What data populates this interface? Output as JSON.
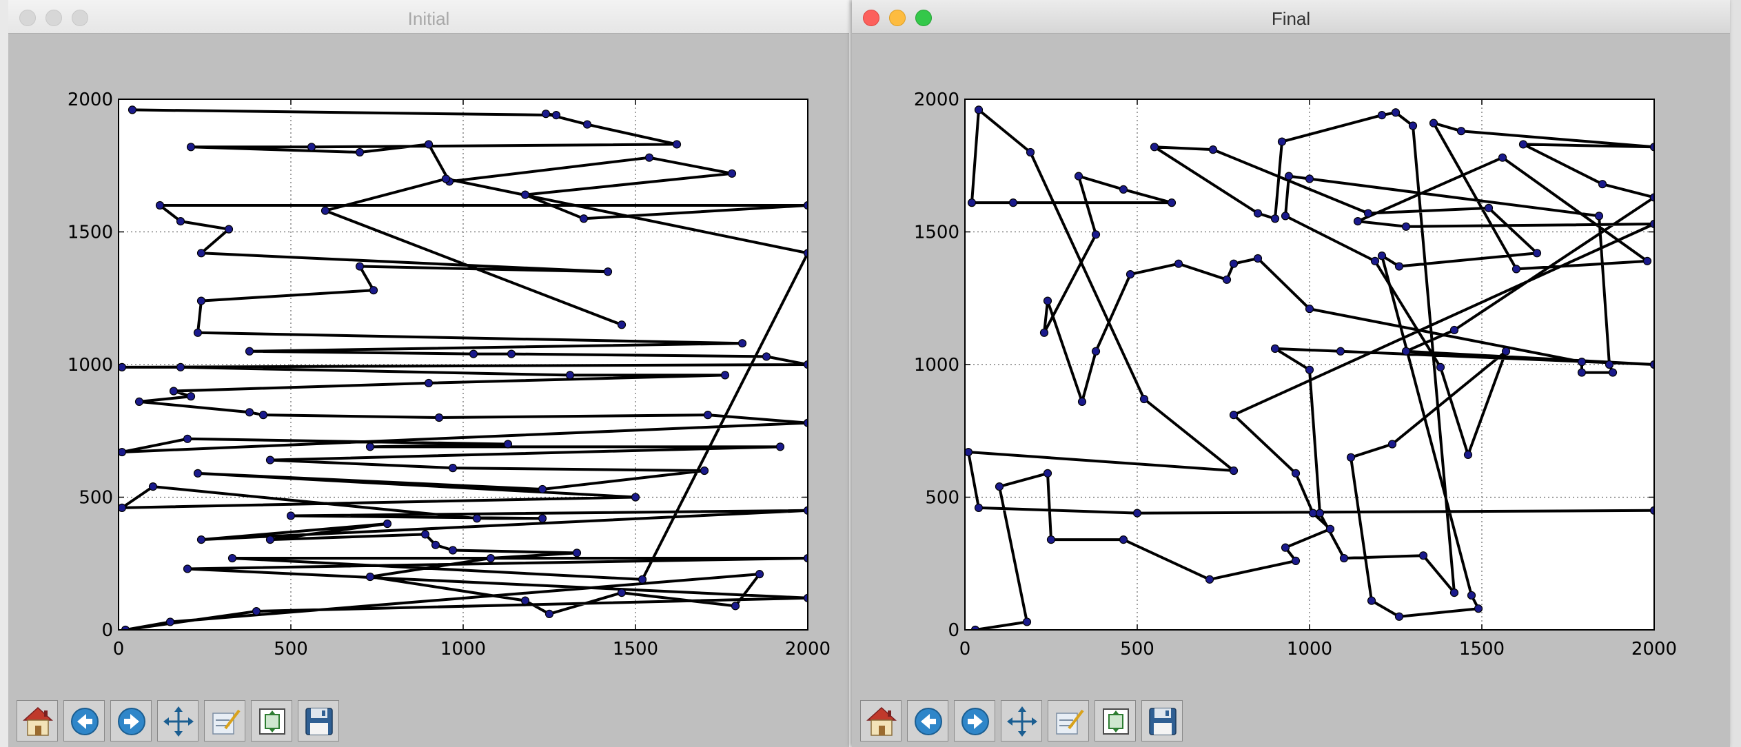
{
  "windows": {
    "initial": {
      "title": "Initial"
    },
    "final": {
      "title": "Final"
    }
  },
  "toolbar": {
    "buttons": [
      "home-icon",
      "back-icon",
      "forward-icon",
      "pan-icon",
      "configure-subplots-icon",
      "zoom-rect-icon",
      "save-icon"
    ]
  },
  "chart_data": [
    {
      "type": "line",
      "title": "",
      "xlabel": "",
      "ylabel": "",
      "xlim": [
        0,
        2000
      ],
      "ylim": [
        0,
        2000
      ],
      "xticks": [
        "0",
        "500",
        "1000",
        "1500",
        "2000"
      ],
      "yticks": [
        "0",
        "500",
        "1000",
        "1500",
        "2000"
      ],
      "grid": true,
      "points": [
        [
          40,
          1960
        ],
        [
          1270,
          1940
        ],
        [
          1240,
          1945
        ],
        [
          1360,
          1905
        ],
        [
          1620,
          1830
        ],
        [
          560,
          1820
        ],
        [
          210,
          1820
        ],
        [
          700,
          1800
        ],
        [
          900,
          1830
        ],
        [
          960,
          1690
        ],
        [
          1540,
          1780
        ],
        [
          1780,
          1720
        ],
        [
          1180,
          1640
        ],
        [
          1350,
          1550
        ],
        [
          2000,
          1600
        ],
        [
          120,
          1600
        ],
        [
          180,
          1540
        ],
        [
          320,
          1510
        ],
        [
          240,
          1420
        ],
        [
          1420,
          1350
        ],
        [
          700,
          1370
        ],
        [
          740,
          1280
        ],
        [
          240,
          1240
        ],
        [
          230,
          1120
        ],
        [
          1810,
          1080
        ],
        [
          380,
          1050
        ],
        [
          1030,
          1040
        ],
        [
          1140,
          1040
        ],
        [
          1880,
          1030
        ],
        [
          2000,
          1000
        ],
        [
          10,
          990
        ],
        [
          180,
          990
        ],
        [
          1310,
          960
        ],
        [
          1760,
          960
        ],
        [
          900,
          930
        ],
        [
          160,
          900
        ],
        [
          210,
          880
        ],
        [
          60,
          860
        ],
        [
          380,
          820
        ],
        [
          420,
          810
        ],
        [
          930,
          800
        ],
        [
          1710,
          810
        ],
        [
          2000,
          780
        ],
        [
          10,
          670
        ],
        [
          200,
          720
        ],
        [
          1130,
          700
        ],
        [
          730,
          690
        ],
        [
          1920,
          690
        ],
        [
          440,
          640
        ],
        [
          970,
          610
        ],
        [
          1700,
          600
        ],
        [
          1230,
          530
        ],
        [
          230,
          590
        ],
        [
          1500,
          500
        ],
        [
          10,
          460
        ],
        [
          100,
          540
        ],
        [
          1040,
          420
        ],
        [
          1230,
          420
        ],
        [
          500,
          430
        ],
        [
          2000,
          450
        ],
        [
          240,
          340
        ],
        [
          780,
          400
        ],
        [
          440,
          340
        ],
        [
          890,
          360
        ],
        [
          920,
          320
        ],
        [
          970,
          300
        ],
        [
          1330,
          290
        ],
        [
          1080,
          270
        ],
        [
          730,
          200
        ],
        [
          1180,
          110
        ],
        [
          1250,
          60
        ],
        [
          1460,
          140
        ],
        [
          1790,
          90
        ],
        [
          1860,
          210
        ],
        [
          150,
          30
        ],
        [
          20,
          0
        ],
        [
          400,
          70
        ],
        [
          2000,
          120
        ],
        [
          200,
          230
        ],
        [
          2000,
          270
        ],
        [
          330,
          270
        ],
        [
          1520,
          190
        ],
        [
          2000,
          1420
        ],
        [
          950,
          1700
        ],
        [
          600,
          1580
        ],
        [
          1460,
          1150
        ]
      ]
    },
    {
      "type": "line",
      "title": "",
      "xlabel": "",
      "ylabel": "",
      "xlim": [
        0,
        2000
      ],
      "ylim": [
        0,
        2000
      ],
      "xticks": [
        "0",
        "500",
        "1000",
        "1500",
        "2000"
      ],
      "yticks": [
        "0",
        "500",
        "1000",
        "1500",
        "2000"
      ],
      "grid": true,
      "points": [
        [
          30,
          0
        ],
        [
          180,
          30
        ],
        [
          100,
          540
        ],
        [
          240,
          590
        ],
        [
          250,
          340
        ],
        [
          460,
          340
        ],
        [
          710,
          190
        ],
        [
          960,
          260
        ],
        [
          930,
          310
        ],
        [
          1060,
          380
        ],
        [
          1010,
          440
        ],
        [
          960,
          590
        ],
        [
          780,
          810
        ],
        [
          2000,
          1530
        ],
        [
          1280,
          1520
        ],
        [
          1140,
          1540
        ],
        [
          1560,
          1780
        ],
        [
          1980,
          1390
        ],
        [
          1600,
          1360
        ],
        [
          1360,
          1910
        ],
        [
          1440,
          1880
        ],
        [
          2000,
          1820
        ],
        [
          1620,
          1830
        ],
        [
          1850,
          1680
        ],
        [
          2000,
          1630
        ],
        [
          1420,
          1130
        ],
        [
          1280,
          1050
        ],
        [
          2000,
          1000
        ],
        [
          1090,
          1050
        ],
        [
          900,
          1060
        ],
        [
          1000,
          980
        ],
        [
          1030,
          440
        ],
        [
          1100,
          270
        ],
        [
          1330,
          280
        ],
        [
          1420,
          140
        ],
        [
          1300,
          1900
        ],
        [
          1250,
          1950
        ],
        [
          1210,
          1940
        ],
        [
          920,
          1840
        ],
        [
          900,
          1550
        ],
        [
          850,
          1570
        ],
        [
          550,
          1820
        ],
        [
          720,
          1810
        ],
        [
          1170,
          1570
        ],
        [
          1520,
          1590
        ],
        [
          1660,
          1420
        ],
        [
          1260,
          1370
        ],
        [
          1210,
          1410
        ],
        [
          1470,
          130
        ],
        [
          1490,
          80
        ],
        [
          1260,
          50
        ],
        [
          1180,
          110
        ],
        [
          1120,
          650
        ],
        [
          1240,
          700
        ],
        [
          1570,
          1050
        ],
        [
          1460,
          660
        ],
        [
          1380,
          990
        ],
        [
          1190,
          1390
        ],
        [
          930,
          1560
        ],
        [
          940,
          1710
        ],
        [
          1000,
          1700
        ],
        [
          1840,
          1560
        ],
        [
          1870,
          1000
        ],
        [
          1880,
          970
        ],
        [
          1790,
          970
        ],
        [
          1790,
          1010
        ],
        [
          1000,
          1210
        ],
        [
          850,
          1400
        ],
        [
          780,
          1380
        ],
        [
          760,
          1320
        ],
        [
          620,
          1380
        ],
        [
          480,
          1340
        ],
        [
          380,
          1050
        ],
        [
          340,
          860
        ],
        [
          240,
          1240
        ],
        [
          230,
          1120
        ],
        [
          380,
          1490
        ],
        [
          330,
          1710
        ],
        [
          460,
          1660
        ],
        [
          600,
          1610
        ],
        [
          140,
          1610
        ],
        [
          20,
          1610
        ],
        [
          40,
          1960
        ],
        [
          190,
          1800
        ],
        [
          520,
          870
        ],
        [
          780,
          600
        ],
        [
          10,
          670
        ],
        [
          40,
          460
        ],
        [
          500,
          440
        ],
        [
          2000,
          450
        ]
      ]
    }
  ]
}
